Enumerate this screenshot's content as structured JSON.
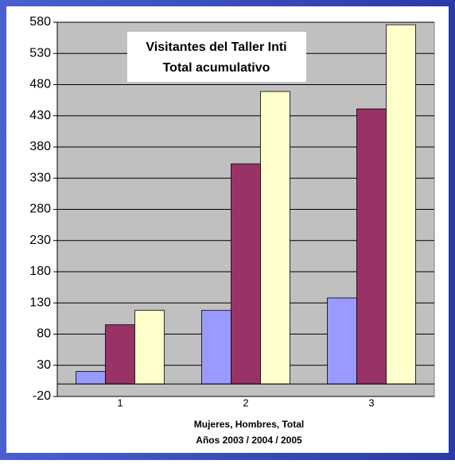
{
  "chart_data": {
    "type": "bar",
    "title": [
      "Visitantes del Taller Inti",
      "Total acumulativo"
    ],
    "xlabel": [
      "Mujeres, Hombres, Total",
      "Años 2003 / 2004 / 2005"
    ],
    "categories": [
      "1",
      "2",
      "3"
    ],
    "series": [
      {
        "color": "#9999ff",
        "values": [
          20,
          118,
          138
        ]
      },
      {
        "color": "#993366",
        "values": [
          95,
          353,
          441
        ]
      },
      {
        "color": "#ffffcc",
        "values": [
          118,
          469,
          576
        ]
      }
    ],
    "ylim": [
      -20,
      580
    ],
    "yticks": [
      -20,
      30,
      80,
      130,
      180,
      230,
      280,
      330,
      380,
      430,
      480,
      530,
      580
    ],
    "grid": true
  }
}
